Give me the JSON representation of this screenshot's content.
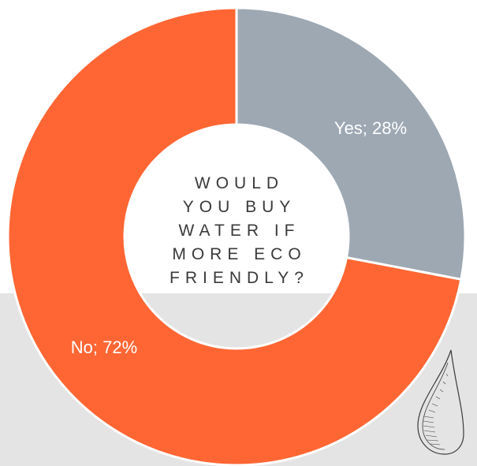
{
  "chart_data": {
    "type": "pie",
    "donut": true,
    "title_lines": [
      "WOULD",
      "YOU BUY",
      "WATER IF",
      "MORE ECO",
      "FRIENDLY?"
    ],
    "slices": [
      {
        "label": "Yes",
        "value": 28,
        "display": "Yes; 28%",
        "color": "#9da8b3"
      },
      {
        "label": "No",
        "value": 72,
        "display": "No; 72%",
        "color": "#ff6634"
      }
    ],
    "start_angle": "12 o'clock",
    "direction": "clockwise",
    "legend": "none"
  },
  "colors": {
    "accent": "#ff6634",
    "neutral": "#9da8b3",
    "band": "#e4e4e4",
    "title": "#3a3a3a"
  },
  "decoration": {
    "icon": "water-drop-icon"
  }
}
